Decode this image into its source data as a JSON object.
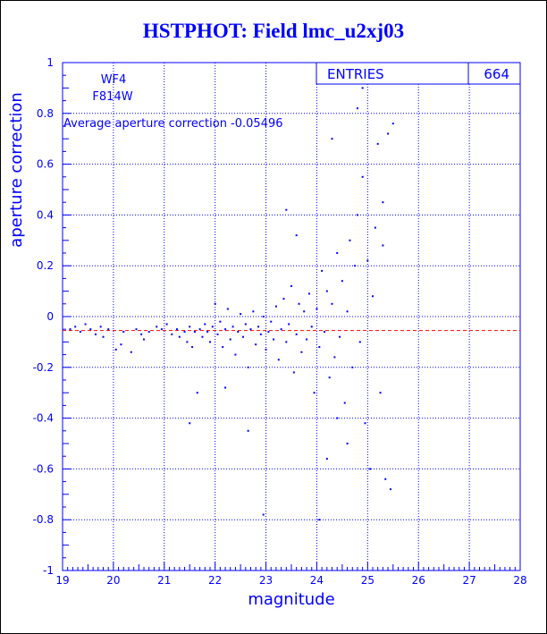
{
  "chart_data": {
    "type": "scatter",
    "title": "HSTPHOT: Field lmc_u2xj03",
    "xlabel": "magnitude",
    "ylabel": "aperture correction",
    "xlim": [
      19,
      28
    ],
    "ylim": [
      -1,
      1
    ],
    "x_ticks": [
      "19",
      "20",
      "21",
      "22",
      "23",
      "24",
      "25",
      "26",
      "27",
      "28"
    ],
    "y_ticks": [
      "-1",
      "-0.8",
      "-0.6",
      "-0.4",
      "-0.2",
      "0",
      "0.2",
      "0.4",
      "0.6",
      "0.8",
      "1"
    ],
    "grid": true,
    "stats_box": {
      "label": "ENTRIES",
      "value": "664"
    },
    "labels": {
      "chip": "WF4",
      "filter": "F814W"
    },
    "annotation": "Average aperture correction -0.05496",
    "reference_line": {
      "y": -0.05496,
      "style": "dashed",
      "color": "#ff0000"
    },
    "colors": {
      "axis": "#0000ff",
      "points": "#0000ff",
      "reference": "#ff0000",
      "title": "#0000ff"
    },
    "points": [
      [
        19.15,
        -0.05
      ],
      [
        19.25,
        -0.04
      ],
      [
        19.35,
        -0.06
      ],
      [
        19.45,
        -0.03
      ],
      [
        19.55,
        -0.05
      ],
      [
        19.65,
        -0.07
      ],
      [
        19.75,
        -0.04
      ],
      [
        19.8,
        -0.08
      ],
      [
        19.9,
        -0.05
      ],
      [
        20.05,
        -0.13
      ],
      [
        20.15,
        -0.11
      ],
      [
        20.2,
        -0.06
      ],
      [
        20.35,
        -0.14
      ],
      [
        20.45,
        -0.05
      ],
      [
        20.55,
        -0.07
      ],
      [
        20.7,
        -0.06
      ],
      [
        20.85,
        -0.04
      ],
      [
        20.95,
        -0.05
      ],
      [
        21.05,
        -0.03
      ],
      [
        21.15,
        -0.07
      ],
      [
        21.25,
        -0.05
      ],
      [
        21.3,
        -0.08
      ],
      [
        21.4,
        -0.06
      ],
      [
        21.45,
        -0.1
      ],
      [
        21.5,
        -0.04
      ],
      [
        21.55,
        -0.12
      ],
      [
        21.6,
        -0.06
      ],
      [
        21.65,
        -0.3
      ],
      [
        21.7,
        -0.05
      ],
      [
        21.75,
        -0.08
      ],
      [
        21.8,
        -0.03
      ],
      [
        21.85,
        -0.06
      ],
      [
        21.9,
        -0.1
      ],
      [
        21.95,
        -0.04
      ],
      [
        22.0,
        0.05
      ],
      [
        22.05,
        -0.07
      ],
      [
        22.1,
        -0.02
      ],
      [
        22.15,
        -0.12
      ],
      [
        22.2,
        -0.05
      ],
      [
        22.25,
        0.03
      ],
      [
        22.3,
        -0.09
      ],
      [
        22.35,
        -0.04
      ],
      [
        22.4,
        -0.15
      ],
      [
        22.45,
        -0.06
      ],
      [
        22.5,
        0.01
      ],
      [
        22.55,
        -0.08
      ],
      [
        22.6,
        -0.03
      ],
      [
        22.65,
        -0.2
      ],
      [
        22.7,
        -0.05
      ],
      [
        22.75,
        0.02
      ],
      [
        22.8,
        -0.11
      ],
      [
        22.85,
        -0.04
      ],
      [
        22.9,
        -0.07
      ],
      [
        22.95,
        0.0
      ],
      [
        23.0,
        -0.13
      ],
      [
        23.05,
        -0.06
      ],
      [
        23.1,
        -0.02
      ],
      [
        23.15,
        -0.09
      ],
      [
        23.2,
        0.04
      ],
      [
        23.25,
        -0.17
      ],
      [
        23.3,
        -0.05
      ],
      [
        23.35,
        0.07
      ],
      [
        23.4,
        -0.1
      ],
      [
        23.45,
        -0.03
      ],
      [
        23.5,
        0.12
      ],
      [
        23.55,
        -0.22
      ],
      [
        23.6,
        -0.07
      ],
      [
        23.65,
        0.05
      ],
      [
        23.7,
        -0.14
      ],
      [
        23.75,
        0.02
      ],
      [
        23.8,
        -0.09
      ],
      [
        23.85,
        0.09
      ],
      [
        23.9,
        -0.04
      ],
      [
        23.95,
        -0.3
      ],
      [
        24.0,
        0.03
      ],
      [
        24.05,
        -0.12
      ],
      [
        24.1,
        0.18
      ],
      [
        24.15,
        -0.06
      ],
      [
        24.2,
        0.1
      ],
      [
        24.25,
        -0.24
      ],
      [
        24.3,
        0.05
      ],
      [
        24.35,
        -0.16
      ],
      [
        24.4,
        0.25
      ],
      [
        24.45,
        -0.08
      ],
      [
        24.5,
        0.14
      ],
      [
        24.55,
        -0.34
      ],
      [
        24.6,
        0.02
      ],
      [
        24.65,
        0.3
      ],
      [
        24.7,
        -0.2
      ],
      [
        24.75,
        0.2
      ],
      [
        24.8,
        0.4
      ],
      [
        24.85,
        -0.1
      ],
      [
        24.9,
        0.55
      ],
      [
        24.95,
        -0.42
      ],
      [
        25.0,
        0.22
      ],
      [
        25.05,
        -0.6
      ],
      [
        25.1,
        0.08
      ],
      [
        25.15,
        0.35
      ],
      [
        25.2,
        0.68
      ],
      [
        25.25,
        -0.3
      ],
      [
        25.3,
        0.45
      ],
      [
        25.35,
        -0.64
      ],
      [
        25.4,
        0.72
      ],
      [
        25.45,
        -0.68
      ],
      [
        25.5,
        0.76
      ],
      [
        22.95,
        -0.78
      ],
      [
        24.2,
        -0.56
      ],
      [
        24.8,
        0.82
      ],
      [
        24.9,
        0.9
      ],
      [
        23.6,
        0.32
      ],
      [
        23.4,
        0.42
      ],
      [
        24.6,
        -0.5
      ],
      [
        24.3,
        0.7
      ],
      [
        24.4,
        -0.4
      ],
      [
        25.3,
        0.28
      ],
      [
        22.2,
        -0.28
      ],
      [
        21.5,
        -0.42
      ],
      [
        20.6,
        -0.09
      ],
      [
        22.65,
        -0.45
      ],
      [
        24.05,
        -0.8
      ]
    ]
  }
}
